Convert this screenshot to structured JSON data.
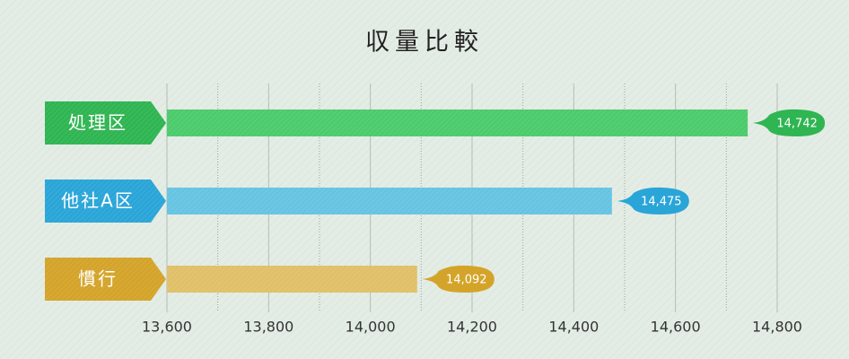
{
  "chart_data": {
    "type": "bar",
    "orientation": "horizontal",
    "title": "収量比較",
    "categories": [
      "処理区",
      "他社A区",
      "慣行"
    ],
    "values": [
      14742,
      14475,
      14092
    ],
    "value_labels": [
      "14,742",
      "14,475",
      "14,092"
    ],
    "colors": [
      "#4ccb6c",
      "#66c4e2",
      "#e0c068"
    ],
    "label_colors": [
      "#2fb552",
      "#2aa5d8",
      "#d4a42a"
    ],
    "xlim": [
      13600,
      14800
    ],
    "xticks": [
      {
        "value": 13600,
        "label": "13,600"
      },
      {
        "value": 13800,
        "label": "13,800"
      },
      {
        "value": 14000,
        "label": "14,000"
      },
      {
        "value": 14200,
        "label": "14,200"
      },
      {
        "value": 14400,
        "label": "14,400"
      },
      {
        "value": 14600,
        "label": "14,600"
      },
      {
        "value": 14800,
        "label": "14,800"
      }
    ],
    "minor_xticks": [
      13700,
      13900,
      14100,
      14300,
      14500,
      14700
    ],
    "grid": true
  }
}
